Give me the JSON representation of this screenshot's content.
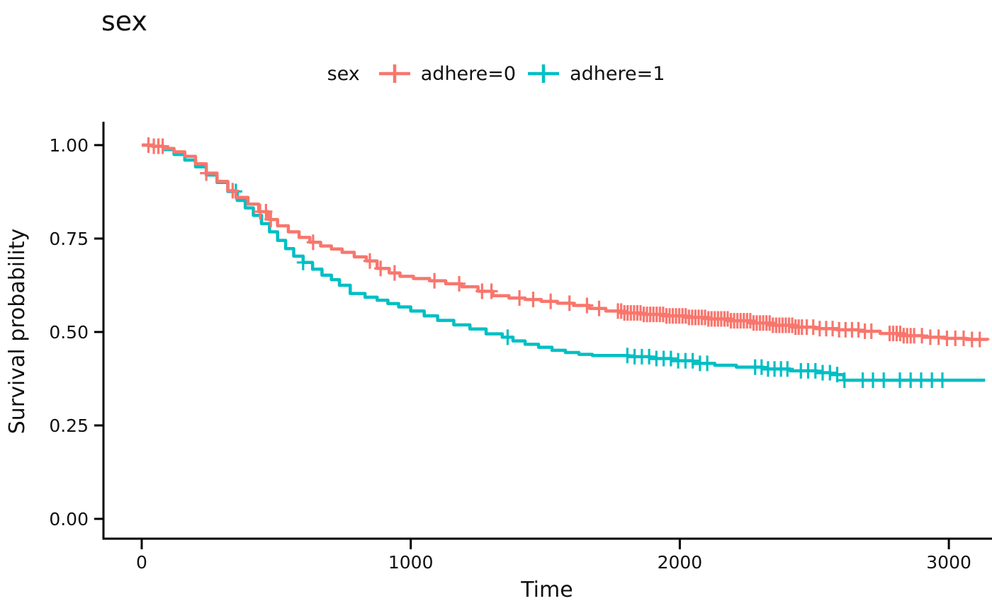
{
  "title": "sex",
  "legend": {
    "title": "sex",
    "position": "top",
    "items": [
      {
        "label": "adhere=0",
        "color": "#F8766D"
      },
      {
        "label": "adhere=1",
        "color": "#00BFC4"
      }
    ]
  },
  "colors": {
    "axis": "#000000",
    "text": "#111111",
    "background": "#ffffff",
    "stratum0": "#F8766D",
    "stratum1": "#00BFC4"
  },
  "chart_data": {
    "type": "line",
    "subtype": "kaplan-meier-step",
    "title": "sex",
    "xlabel": "Time",
    "ylabel": "Survival probability",
    "xlim": [
      0,
      3160
    ],
    "ylim": [
      0,
      1
    ],
    "xticks": [
      0,
      1000,
      2000,
      3000
    ],
    "xtick_labels": [
      "0",
      "1000",
      "2000",
      "3000"
    ],
    "yticks": [
      0.0,
      0.25,
      0.5,
      0.75,
      1.0
    ],
    "ytick_labels": [
      "0.00",
      "0.25",
      "0.50",
      "0.75",
      "1.00"
    ],
    "grid": false,
    "legend_position": "top",
    "series": [
      {
        "name": "adhere=1",
        "color": "#00BFC4",
        "points": [
          [
            0,
            1.0
          ],
          [
            40,
            0.997
          ],
          [
            80,
            0.988
          ],
          [
            120,
            0.975
          ],
          [
            160,
            0.96
          ],
          [
            200,
            0.942
          ],
          [
            240,
            0.92
          ],
          [
            280,
            0.9
          ],
          [
            320,
            0.876
          ],
          [
            355,
            0.852
          ],
          [
            385,
            0.832
          ],
          [
            415,
            0.812
          ],
          [
            445,
            0.79
          ],
          [
            475,
            0.768
          ],
          [
            505,
            0.745
          ],
          [
            535,
            0.723
          ],
          [
            565,
            0.703
          ],
          [
            600,
            0.686
          ],
          [
            635,
            0.668
          ],
          [
            670,
            0.652
          ],
          [
            705,
            0.64
          ],
          [
            735,
            0.625
          ],
          [
            775,
            0.603
          ],
          [
            830,
            0.593
          ],
          [
            875,
            0.585
          ],
          [
            915,
            0.576
          ],
          [
            955,
            0.567
          ],
          [
            1000,
            0.556
          ],
          [
            1050,
            0.543
          ],
          [
            1100,
            0.531
          ],
          [
            1160,
            0.519
          ],
          [
            1220,
            0.508
          ],
          [
            1280,
            0.495
          ],
          [
            1340,
            0.486
          ],
          [
            1380,
            0.476
          ],
          [
            1425,
            0.467
          ],
          [
            1475,
            0.459
          ],
          [
            1525,
            0.451
          ],
          [
            1575,
            0.445
          ],
          [
            1625,
            0.44
          ],
          [
            1675,
            0.437
          ],
          [
            1810,
            0.434
          ],
          [
            1890,
            0.429
          ],
          [
            1970,
            0.423
          ],
          [
            2050,
            0.416
          ],
          [
            2130,
            0.411
          ],
          [
            2210,
            0.406
          ],
          [
            2310,
            0.401
          ],
          [
            2410,
            0.396
          ],
          [
            2510,
            0.391
          ],
          [
            2560,
            0.386
          ],
          [
            2610,
            0.371
          ],
          [
            3135,
            0.371
          ]
        ],
        "censor_times": [
          350,
          600,
          1360,
          2680,
          2718,
          2758,
          2818,
          2858,
          2897,
          2937,
          2976
        ],
        "censor_bands": [
          {
            "from": 1805,
            "to": 2110,
            "step": 27
          },
          {
            "from": 2280,
            "to": 2400,
            "step": 24
          },
          {
            "from": 2450,
            "to": 2620,
            "step": 27
          }
        ]
      },
      {
        "name": "adhere=0",
        "color": "#F8766D",
        "points": [
          [
            0,
            1.0
          ],
          [
            40,
            0.997
          ],
          [
            80,
            0.991
          ],
          [
            120,
            0.982
          ],
          [
            160,
            0.97
          ],
          [
            200,
            0.95
          ],
          [
            240,
            0.925
          ],
          [
            280,
            0.903
          ],
          [
            320,
            0.878
          ],
          [
            350,
            0.86
          ],
          [
            395,
            0.842
          ],
          [
            435,
            0.822
          ],
          [
            470,
            0.801
          ],
          [
            505,
            0.784
          ],
          [
            545,
            0.768
          ],
          [
            585,
            0.753
          ],
          [
            625,
            0.74
          ],
          [
            665,
            0.73
          ],
          [
            705,
            0.722
          ],
          [
            745,
            0.713
          ],
          [
            790,
            0.701
          ],
          [
            835,
            0.69
          ],
          [
            875,
            0.67
          ],
          [
            920,
            0.658
          ],
          [
            960,
            0.649
          ],
          [
            1010,
            0.643
          ],
          [
            1070,
            0.637
          ],
          [
            1130,
            0.629
          ],
          [
            1190,
            0.621
          ],
          [
            1250,
            0.609
          ],
          [
            1305,
            0.597
          ],
          [
            1365,
            0.591
          ],
          [
            1425,
            0.587
          ],
          [
            1485,
            0.582
          ],
          [
            1545,
            0.577
          ],
          [
            1605,
            0.571
          ],
          [
            1665,
            0.563
          ],
          [
            1725,
            0.556
          ],
          [
            1785,
            0.551
          ],
          [
            1865,
            0.547
          ],
          [
            1945,
            0.543
          ],
          [
            2025,
            0.539
          ],
          [
            2105,
            0.535
          ],
          [
            2185,
            0.53
          ],
          [
            2265,
            0.524
          ],
          [
            2345,
            0.518
          ],
          [
            2425,
            0.513
          ],
          [
            2505,
            0.509
          ],
          [
            2585,
            0.506
          ],
          [
            2665,
            0.502
          ],
          [
            2745,
            0.496
          ],
          [
            2825,
            0.49
          ],
          [
            2905,
            0.486
          ],
          [
            2985,
            0.483
          ],
          [
            3065,
            0.48
          ],
          [
            3145,
            0.478
          ]
        ],
        "censor_times": [
          25,
          45,
          62,
          78,
          240,
          338,
          440,
          462,
          480,
          637,
          848,
          888,
          940,
          1088,
          1180,
          1265,
          1300,
          1404,
          1455,
          1520,
          1590,
          1655,
          1700,
          3115
        ],
        "censor_bands": [
          {
            "from": 1770,
            "to": 2460,
            "step": 12
          },
          {
            "from": 2472,
            "to": 2730,
            "step": 24
          },
          {
            "from": 2780,
            "to": 2872,
            "step": 13
          },
          {
            "from": 2900,
            "to": 3090,
            "step": 31
          }
        ]
      }
    ]
  }
}
